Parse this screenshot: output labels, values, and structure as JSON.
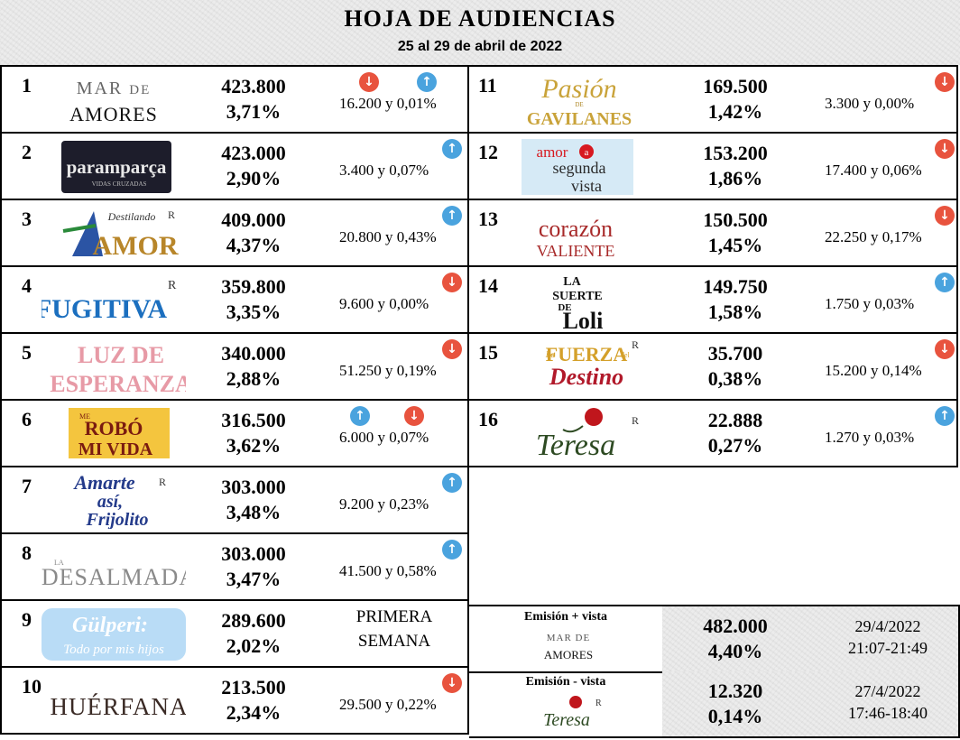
{
  "header": {
    "title": "HOJA DE AUDIENCIAS",
    "subtitle": "25 al 29 de abril de 2022"
  },
  "rows": [
    {
      "rank": "1",
      "logo": "MAR DE AMORES",
      "viewers": "423.800",
      "share": "3,71%",
      "change": "16.200 y 0,01%",
      "arrows": [
        "down",
        "up"
      ]
    },
    {
      "rank": "2",
      "logo": "paramparça",
      "viewers": "423.000",
      "share": "2,90%",
      "change": "3.400 y 0,07%",
      "arrows": [
        "up"
      ]
    },
    {
      "rank": "3",
      "logo": "Destilando AMOR",
      "viewers": "409.000",
      "share": "4,37%",
      "change": "20.800 y 0,43%",
      "arrows": [
        "up"
      ]
    },
    {
      "rank": "4",
      "logo": "FUGITIVA",
      "viewers": "359.800",
      "share": "3,35%",
      "change": "9.600 y 0,00%",
      "arrows": [
        "down"
      ]
    },
    {
      "rank": "5",
      "logo": "LUZ DE ESPERANZA",
      "viewers": "340.000",
      "share": "2,88%",
      "change": "51.250 y 0,19%",
      "arrows": [
        "down"
      ]
    },
    {
      "rank": "6",
      "logo": "ME ROBÓ MI VIDA",
      "viewers": "316.500",
      "share": "3,62%",
      "change": "6.000 y 0,07%",
      "arrows": [
        "up",
        "down"
      ]
    },
    {
      "rank": "7",
      "logo": "Amarte así, Frijolito",
      "viewers": "303.000",
      "share": "3,48%",
      "change": "9.200 y 0,23%",
      "arrows": [
        "up"
      ]
    },
    {
      "rank": "8",
      "logo": "LA DESALMADA",
      "viewers": "303.000",
      "share": "3,47%",
      "change": "41.500 y 0,58%",
      "arrows": [
        "up"
      ]
    },
    {
      "rank": "9",
      "logo": "Gülperi: Todo por mis hijos",
      "viewers": "289.600",
      "share": "2,02%",
      "note": [
        "PRIMERA",
        "SEMANA"
      ],
      "arrows": []
    },
    {
      "rank": "10",
      "logo": "HUÉRFANAS",
      "viewers": "213.500",
      "share": "2,34%",
      "change": "29.500 y 0,22%",
      "arrows": [
        "down"
      ]
    },
    {
      "rank": "11",
      "logo": "Pasión de GAVILANES",
      "viewers": "169.500",
      "share": "1,42%",
      "change": "3.300 y 0,00%",
      "arrows": [
        "down"
      ]
    },
    {
      "rank": "12",
      "logo": "amor a segunda vista",
      "viewers": "153.200",
      "share": "1,86%",
      "change": "17.400 y 0,06%",
      "arrows": [
        "down"
      ]
    },
    {
      "rank": "13",
      "logo": "corazón VALIENTE",
      "viewers": "150.500",
      "share": "1,45%",
      "change": "22.250 y 0,17%",
      "arrows": [
        "down"
      ]
    },
    {
      "rank": "14",
      "logo": "LA SUERTE DE LOLI",
      "viewers": "149.750",
      "share": "1,58%",
      "change": "1.750 y 0,03%",
      "arrows": [
        "up"
      ]
    },
    {
      "rank": "15",
      "logo": "La FUERZA del Destino",
      "viewers": "35.700",
      "share": "0,38%",
      "change": "15.200 y 0,14%",
      "arrows": [
        "down"
      ]
    },
    {
      "rank": "16",
      "logo": "Teresa",
      "viewers": "22.888",
      "share": "0,27%",
      "change": "1.270 y 0,03%",
      "arrows": [
        "up"
      ]
    }
  ],
  "extras": [
    {
      "label": "Emisión + vista",
      "logo": "MAR DE AMORES",
      "viewers": "482.000",
      "share": "4,40%",
      "date": "29/4/2022",
      "time": "21:07-21:49"
    },
    {
      "label": "Emisión  - vista",
      "logo": "Teresa",
      "viewers": "12.320",
      "share": "0,14%",
      "date": "27/4/2022",
      "time": "17:46-18:40"
    }
  ],
  "colors": {
    "down": "#e8533e",
    "up": "#4aa3de"
  },
  "icons": {
    "down": "arrow-down-icon",
    "up": "arrow-up-icon"
  }
}
